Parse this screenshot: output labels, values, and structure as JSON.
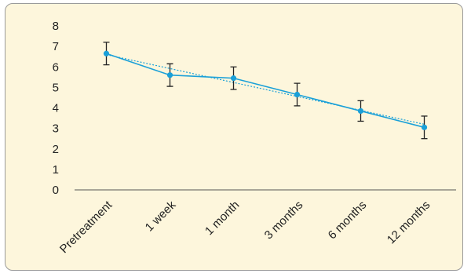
{
  "chart_data": {
    "type": "line",
    "categories": [
      "Pretreatment",
      "1 week",
      "1 month",
      "3 months",
      "6 months",
      "12 months"
    ],
    "series": [
      {
        "values": [
          6.65,
          5.6,
          5.45,
          4.65,
          3.85,
          3.05
        ],
        "error": [
          0.55,
          0.55,
          0.55,
          0.55,
          0.5,
          0.55
        ],
        "color": "#1aa0d8"
      }
    ],
    "trendline": {
      "start": 6.6,
      "end": 3.2,
      "style": "dotted",
      "color": "#1aa0d8"
    },
    "ylim": [
      0,
      8
    ],
    "yticks": [
      "0",
      "1",
      "2",
      "3",
      "4",
      "5",
      "6",
      "7",
      "8"
    ],
    "error_bar_color": "#222222",
    "background": "#fdf6dc",
    "grid": false,
    "legend": "none"
  }
}
